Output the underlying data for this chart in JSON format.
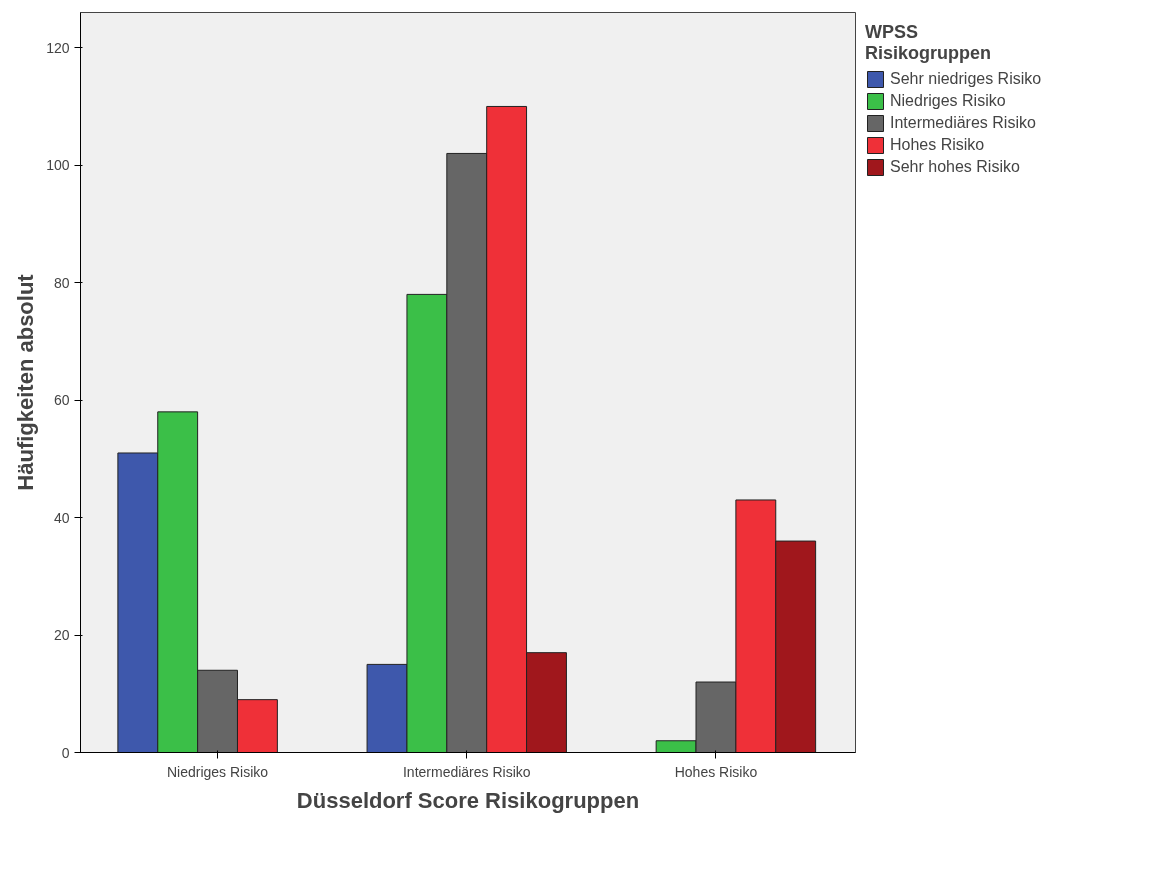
{
  "chart_data": {
    "type": "bar",
    "xlabel": "Düsseldorf Score Risikogruppen",
    "ylabel": "Häufigkeiten absolut",
    "legend_title": "WPSS\nRisikogruppen",
    "legend": "right",
    "categories": [
      "Niedriges Risiko",
      "Intermediäres Risiko",
      "Hohes Risiko"
    ],
    "series": [
      {
        "name": "Sehr niedriges Risiko",
        "color": "#3e58ac",
        "values": [
          51,
          15,
          null
        ]
      },
      {
        "name": "Niedriges Risiko",
        "color": "#3bbf48",
        "values": [
          58,
          78,
          2
        ]
      },
      {
        "name": "Intermediäres Risiko",
        "color": "#666666",
        "values": [
          14,
          102,
          12
        ]
      },
      {
        "name": "Hohes Risiko",
        "color": "#ef3038",
        "values": [
          9,
          110,
          43
        ]
      },
      {
        "name": "Sehr hohes Risiko",
        "color": "#a0171c",
        "values": [
          null,
          17,
          36
        ]
      }
    ],
    "ylim": [
      0,
      126
    ],
    "yticks": [
      0,
      20,
      40,
      60,
      80,
      100,
      120
    ],
    "grid": false
  }
}
